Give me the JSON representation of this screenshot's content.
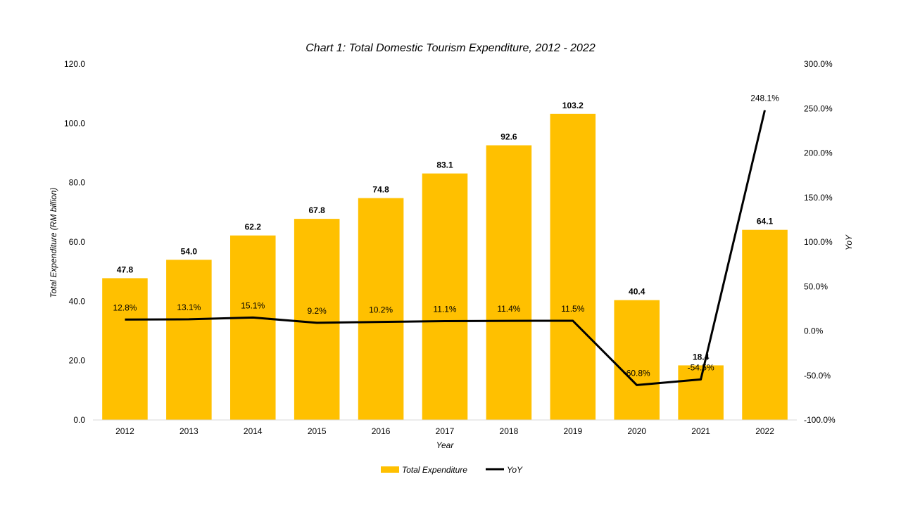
{
  "chart_data": {
    "type": "bar",
    "title": "Chart 1: Total Domestic Tourism Expenditure, 2012 - 2022",
    "xlabel": "Year",
    "ylabel": "Total Expenditure  (RM billion)",
    "y2label": "YoY",
    "categories": [
      "2012",
      "2013",
      "2014",
      "2015",
      "2016",
      "2017",
      "2018",
      "2019",
      "2020",
      "2021",
      "2022"
    ],
    "ylim": [
      0,
      120
    ],
    "yticks": [
      "0.0",
      "20.0",
      "40.0",
      "60.0",
      "80.0",
      "100.0",
      "120.0"
    ],
    "y2lim": [
      -100,
      300
    ],
    "y2ticks": [
      "-100.0%",
      "-50.0%",
      "0.0%",
      "50.0%",
      "100.0%",
      "150.0%",
      "200.0%",
      "250.0%",
      "300.0%"
    ],
    "series": [
      {
        "name": "Total Expenditure",
        "type": "bar",
        "axis": "left",
        "color": "#FFC000",
        "values": [
          47.8,
          54.0,
          62.2,
          67.8,
          74.8,
          83.1,
          92.6,
          103.2,
          40.4,
          18.4,
          64.1
        ],
        "labels": [
          "47.8",
          "54.0",
          "62.2",
          "67.8",
          "74.8",
          "83.1",
          "92.6",
          "103.2",
          "40.4",
          "18.4",
          "64.1"
        ]
      },
      {
        "name": "YoY",
        "type": "line",
        "axis": "right",
        "color": "#000000",
        "values": [
          12.8,
          13.1,
          15.1,
          9.2,
          10.2,
          11.1,
          11.4,
          11.5,
          -60.8,
          -54.5,
          248.1
        ],
        "labels": [
          "12.8%",
          "13.1%",
          "15.1%",
          "9.2%",
          "10.2%",
          "11.1%",
          "11.4%",
          "11.5%",
          "-60.8%",
          "-54.5%",
          "248.1%"
        ]
      }
    ],
    "legend_position": "bottom",
    "grid": false
  }
}
